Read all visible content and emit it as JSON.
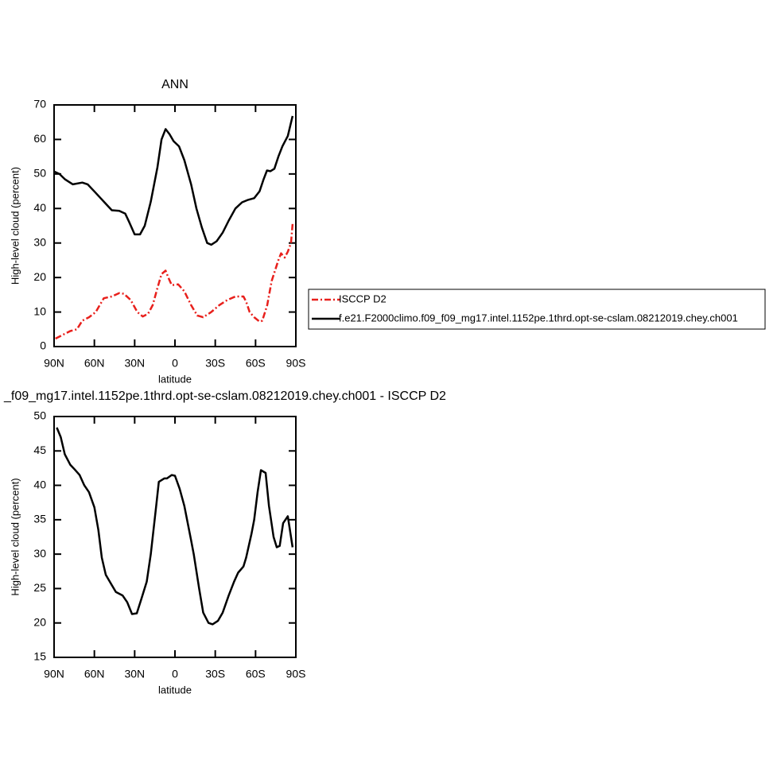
{
  "chart_data": [
    {
      "type": "line",
      "title": "ANN",
      "x_label": "latitude",
      "y_label": "High-level cloud (percent)",
      "xlim": [
        90,
        -90
      ],
      "ylim": [
        0,
        70
      ],
      "xticks": [
        {
          "value": 90,
          "label": "90N"
        },
        {
          "value": 60,
          "label": "60N"
        },
        {
          "value": 30,
          "label": "30N"
        },
        0,
        {
          "value": -30,
          "label": "30S"
        },
        {
          "value": -60,
          "label": "60S"
        },
        {
          "value": -90,
          "label": "90S"
        }
      ],
      "yticks": [
        0,
        10,
        20,
        30,
        40,
        50,
        60,
        70
      ],
      "legend": "right",
      "series": [
        {
          "name": "ISCCP D2",
          "color": "#e8201c",
          "dash": true,
          "x": [
            89,
            83,
            78,
            73,
            69,
            64,
            59,
            56,
            53,
            47,
            41.5,
            38,
            33,
            28,
            24,
            20,
            16.6,
            13,
            10,
            7,
            5,
            2.4,
            -2.4,
            -7,
            -12,
            -16.6,
            -21,
            -27,
            -33,
            -39,
            -45,
            -51,
            -53,
            -55.6,
            -59,
            -63,
            -65,
            -68.7,
            -72,
            -77,
            -79,
            -81.7,
            -84,
            -86.4,
            -87.6
          ],
          "values": [
            2.3,
            3.5,
            4.5,
            5,
            7.5,
            8.5,
            10,
            12,
            14,
            14.5,
            15.5,
            15.3,
            13.5,
            10,
            8.7,
            9.5,
            12,
            17,
            21,
            22,
            20,
            17.8,
            18,
            16,
            12,
            9,
            8.5,
            10,
            12,
            13.5,
            14.5,
            14.5,
            13,
            10,
            8.5,
            7.2,
            7.5,
            12,
            19,
            25,
            27,
            25.8,
            27.5,
            30,
            35.5
          ]
        },
        {
          "name": "f.e21.F2000climo.f09_f09_mg17.intel.1152pe.1thrd.opt-se-cslam.08212019.chey.ch001",
          "color": "#000000",
          "dash": false,
          "x": [
            90,
            86,
            82,
            76,
            69,
            65,
            59,
            53,
            47,
            41.5,
            37,
            34,
            30,
            26,
            22.5,
            18,
            13,
            10,
            7,
            4,
            1,
            -3,
            -7,
            -12,
            -16,
            -20,
            -24,
            -27,
            -31,
            -35.5,
            -40,
            -45,
            -50,
            -54.5,
            -59,
            -63,
            -66,
            -68.5,
            -71,
            -74,
            -77,
            -80,
            -84,
            -87.6
          ],
          "values": [
            50.7,
            50,
            48.5,
            47,
            47.5,
            47,
            44.5,
            42,
            39.5,
            39.3,
            38.5,
            36,
            32.5,
            32.5,
            35,
            42,
            52,
            60,
            63,
            61.5,
            59.5,
            58,
            54,
            47,
            40,
            34.5,
            30,
            29.5,
            30.5,
            33,
            36.5,
            40,
            41.8,
            42.5,
            43,
            45,
            48.5,
            51,
            50.8,
            51.5,
            55,
            58,
            61,
            66.8
          ]
        }
      ]
    },
    {
      "type": "line",
      "title": "_f09_mg17.intel.1152pe.1thrd.opt-se-cslam.08212019.chey.ch001 - ISCCP D2",
      "x_label": "latitude",
      "y_label": "High-level cloud (percent)",
      "xlim": [
        90,
        -90
      ],
      "ylim": [
        15,
        50
      ],
      "xticks": [
        {
          "value": 90,
          "label": "90N"
        },
        {
          "value": 60,
          "label": "60N"
        },
        {
          "value": 30,
          "label": "30N"
        },
        0,
        {
          "value": -30,
          "label": "30S"
        },
        {
          "value": -60,
          "label": "60S"
        },
        {
          "value": -90,
          "label": "90S"
        }
      ],
      "yticks": [
        15,
        20,
        25,
        30,
        35,
        40,
        45,
        50
      ],
      "series": [
        {
          "color": "#000000",
          "dash": false,
          "x": [
            88,
            85,
            82,
            78,
            74.6,
            71,
            67.5,
            64,
            60,
            57,
            54.5,
            51.5,
            47,
            44,
            39,
            35.5,
            32,
            28.4,
            25,
            21,
            18,
            14,
            12,
            8,
            6,
            2.4,
            0,
            -3.5,
            -7,
            -12,
            -14,
            -18,
            -21,
            -25,
            -28,
            -32,
            -35.5,
            -40,
            -44,
            -47,
            -51,
            -53,
            -57,
            -59,
            -61.5,
            -64,
            -67.5,
            -70,
            -73.4,
            -75.8,
            -78,
            -80.5,
            -84,
            -87.6
          ],
          "values": [
            48.4,
            47,
            44.5,
            43,
            42.3,
            41.5,
            40,
            39,
            36.8,
            33.5,
            29.5,
            27,
            25.5,
            24.5,
            24,
            23,
            21.3,
            21.4,
            23.5,
            26,
            30,
            37,
            40.5,
            41,
            41,
            41.5,
            41.4,
            39.5,
            37,
            32,
            30,
            25,
            21.5,
            20,
            19.8,
            20.3,
            21.5,
            24,
            26,
            27.3,
            28.2,
            29.5,
            33,
            35,
            39,
            42.2,
            41.8,
            37,
            32.5,
            31,
            31.2,
            34.5,
            35.5,
            31
          ]
        }
      ]
    }
  ]
}
